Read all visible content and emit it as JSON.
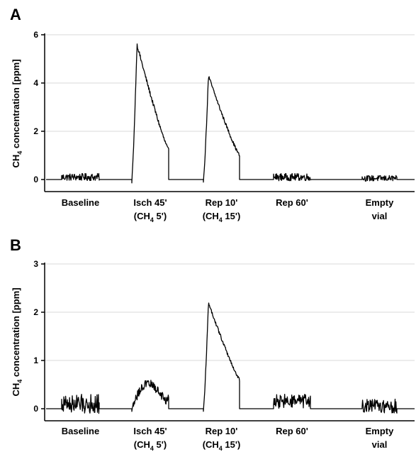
{
  "chart_data": [
    {
      "panel": "A",
      "type": "line",
      "ylabel_main": "CH",
      "ylabel_sub": "4",
      "ylabel_rest": " concentration [ppm]",
      "ylim": [
        0,
        6
      ],
      "yticks": [
        0,
        2,
        4,
        6
      ],
      "grid": true,
      "categories": [
        {
          "line1": "Baseline",
          "line2": null
        },
        {
          "line1": "Isch 45'",
          "line2": {
            "pre": "(CH",
            "sub": "4",
            "post": " 5')"
          }
        },
        {
          "line1": "Rep 10'",
          "line2": {
            "pre": "(CH",
            "sub": "4",
            "post": " 15')"
          }
        },
        {
          "line1": "Rep 60'",
          "line2": null
        },
        {
          "line1": "Empty",
          "line2": "vial"
        }
      ],
      "segments": [
        {
          "category": "Baseline",
          "shape": "noise",
          "level": 0.1,
          "amp": 0.15
        },
        {
          "category": "Isch 45'",
          "shape": "peak",
          "peak": 5.6,
          "end": 1.2
        },
        {
          "category": "Rep 10'",
          "shape": "peak",
          "peak": 4.3,
          "end": 1.0
        },
        {
          "category": "Rep 60'",
          "shape": "noise",
          "level": 0.1,
          "amp": 0.15
        },
        {
          "category": "Empty vial",
          "shape": "noise",
          "level": 0.05,
          "amp": 0.12
        }
      ]
    },
    {
      "panel": "B",
      "type": "line",
      "ylabel_main": "CH",
      "ylabel_sub": "4",
      "ylabel_rest": " concentration [ppm]",
      "ylim": [
        0,
        3
      ],
      "yticks": [
        0,
        1,
        2,
        3
      ],
      "grid": true,
      "categories": [
        {
          "line1": "Baseline",
          "line2": null
        },
        {
          "line1": "Isch 45'",
          "line2": {
            "pre": "(CH",
            "sub": "4",
            "post": " 5')"
          }
        },
        {
          "line1": "Rep 10'",
          "line2": {
            "pre": "(CH",
            "sub": "4",
            "post": " 15')"
          }
        },
        {
          "line1": "Rep 60'",
          "line2": null
        },
        {
          "line1": "Empty",
          "line2": "vial"
        }
      ],
      "segments": [
        {
          "category": "Baseline",
          "shape": "noise",
          "level": 0.1,
          "amp": 0.2
        },
        {
          "category": "Isch 45'",
          "shape": "hump",
          "peak": 0.55,
          "end": 0.2
        },
        {
          "category": "Rep 10'",
          "shape": "peak",
          "peak": 2.2,
          "end": 0.6
        },
        {
          "category": "Rep 60'",
          "shape": "noise",
          "level": 0.15,
          "amp": 0.15
        },
        {
          "category": "Empty vial",
          "shape": "noise",
          "level": 0.05,
          "amp": 0.15
        }
      ]
    }
  ]
}
